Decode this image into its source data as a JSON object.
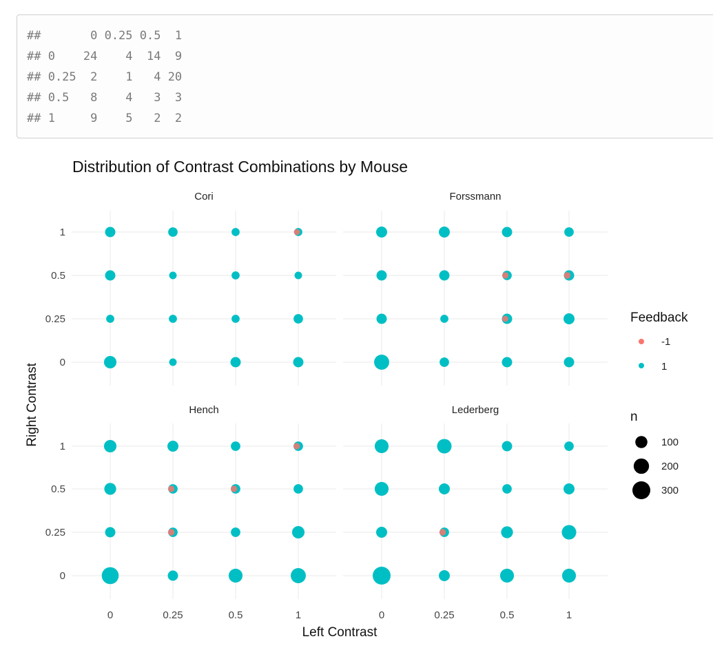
{
  "console": {
    "lines": [
      "##       0 0.25 0.5  1",
      "## 0    24    4  14  9",
      "## 0.25  2    1   4 20",
      "## 0.5   8    4   3  3",
      "## 1     9    5   2  2"
    ]
  },
  "colors": {
    "neg": "#F8766D",
    "pos": "#00BFC4",
    "grid": "#e8e8e8",
    "text": "#444444"
  },
  "chart_data": {
    "type": "scatter",
    "title": "Distribution of Contrast Combinations by Mouse",
    "xlabel": "Left Contrast",
    "ylabel": "Right Contrast",
    "x_categories": [
      "0",
      "0.25",
      "0.5",
      "1"
    ],
    "y_categories": [
      "0",
      "0.25",
      "0.5",
      "1"
    ],
    "grid": true,
    "legend_placement": "right",
    "legend_color": {
      "title": "Feedback",
      "entries": [
        "-1",
        "1"
      ]
    },
    "legend_size": {
      "title": "n",
      "entries": [
        "100",
        "200",
        "300"
      ],
      "values": [
        100,
        200,
        300
      ]
    },
    "panels": [
      {
        "name": "Cori",
        "points": [
          {
            "x": "0",
            "y": "1",
            "n": 60,
            "neg": 0
          },
          {
            "x": "0.25",
            "y": "1",
            "n": 45,
            "neg": 0
          },
          {
            "x": "0.5",
            "y": "1",
            "n": 25,
            "neg": 0
          },
          {
            "x": "1",
            "y": "1",
            "n": 25,
            "neg": 6
          },
          {
            "x": "0",
            "y": "0.5",
            "n": 60,
            "neg": 0
          },
          {
            "x": "0.25",
            "y": "0.5",
            "n": 18,
            "neg": 0
          },
          {
            "x": "0.5",
            "y": "0.5",
            "n": 25,
            "neg": 0
          },
          {
            "x": "1",
            "y": "0.5",
            "n": 18,
            "neg": 0
          },
          {
            "x": "0",
            "y": "0.25",
            "n": 25,
            "neg": 0
          },
          {
            "x": "0.25",
            "y": "0.25",
            "n": 25,
            "neg": 0
          },
          {
            "x": "0.5",
            "y": "0.25",
            "n": 25,
            "neg": 0
          },
          {
            "x": "1",
            "y": "0.25",
            "n": 45,
            "neg": 0
          },
          {
            "x": "0",
            "y": "0",
            "n": 110,
            "neg": 0
          },
          {
            "x": "0.25",
            "y": "0",
            "n": 18,
            "neg": 0
          },
          {
            "x": "0.5",
            "y": "0",
            "n": 60,
            "neg": 0
          },
          {
            "x": "1",
            "y": "0",
            "n": 60,
            "neg": 0
          }
        ]
      },
      {
        "name": "Forssmann",
        "points": [
          {
            "x": "0",
            "y": "1",
            "n": 75,
            "neg": 0
          },
          {
            "x": "0.25",
            "y": "1",
            "n": 75,
            "neg": 0
          },
          {
            "x": "0.5",
            "y": "1",
            "n": 60,
            "neg": 0
          },
          {
            "x": "1",
            "y": "1",
            "n": 45,
            "neg": 0
          },
          {
            "x": "0",
            "y": "0.5",
            "n": 60,
            "neg": 0
          },
          {
            "x": "0.25",
            "y": "0.5",
            "n": 60,
            "neg": 0
          },
          {
            "x": "0.5",
            "y": "0.5",
            "n": 45,
            "neg": 8
          },
          {
            "x": "1",
            "y": "0.5",
            "n": 60,
            "neg": 10
          },
          {
            "x": "0",
            "y": "0.25",
            "n": 60,
            "neg": 0
          },
          {
            "x": "0.25",
            "y": "0.25",
            "n": 25,
            "neg": 0
          },
          {
            "x": "0.5",
            "y": "0.25",
            "n": 60,
            "neg": 6
          },
          {
            "x": "1",
            "y": "0.25",
            "n": 75,
            "neg": 0
          },
          {
            "x": "0",
            "y": "0",
            "n": 190,
            "neg": 0
          },
          {
            "x": "0.25",
            "y": "0",
            "n": 45,
            "neg": 0
          },
          {
            "x": "0.5",
            "y": "0",
            "n": 60,
            "neg": 0
          },
          {
            "x": "1",
            "y": "0",
            "n": 60,
            "neg": 0
          }
        ]
      },
      {
        "name": "Hench",
        "points": [
          {
            "x": "0",
            "y": "1",
            "n": 110,
            "neg": 0
          },
          {
            "x": "0.25",
            "y": "1",
            "n": 75,
            "neg": 0
          },
          {
            "x": "0.5",
            "y": "1",
            "n": 45,
            "neg": 0
          },
          {
            "x": "1",
            "y": "1",
            "n": 45,
            "neg": 8
          },
          {
            "x": "0",
            "y": "0.5",
            "n": 95,
            "neg": 0
          },
          {
            "x": "0.25",
            "y": "0.5",
            "n": 45,
            "neg": 8
          },
          {
            "x": "0.5",
            "y": "0.5",
            "n": 45,
            "neg": 8
          },
          {
            "x": "1",
            "y": "0.5",
            "n": 45,
            "neg": 0
          },
          {
            "x": "0",
            "y": "0.25",
            "n": 60,
            "neg": 0
          },
          {
            "x": "0.25",
            "y": "0.25",
            "n": 45,
            "neg": 10
          },
          {
            "x": "0.5",
            "y": "0.25",
            "n": 45,
            "neg": 0
          },
          {
            "x": "1",
            "y": "0.25",
            "n": 110,
            "neg": 0
          },
          {
            "x": "0",
            "y": "0",
            "n": 260,
            "neg": 0
          },
          {
            "x": "0.25",
            "y": "0",
            "n": 60,
            "neg": 0
          },
          {
            "x": "0.5",
            "y": "0",
            "n": 150,
            "neg": 0
          },
          {
            "x": "1",
            "y": "0",
            "n": 190,
            "neg": 0
          }
        ]
      },
      {
        "name": "Lederberg",
        "points": [
          {
            "x": "0",
            "y": "1",
            "n": 150,
            "neg": 0
          },
          {
            "x": "0.25",
            "y": "1",
            "n": 170,
            "neg": 0
          },
          {
            "x": "0.5",
            "y": "1",
            "n": 60,
            "neg": 0
          },
          {
            "x": "1",
            "y": "1",
            "n": 45,
            "neg": 0
          },
          {
            "x": "0",
            "y": "0.5",
            "n": 150,
            "neg": 0
          },
          {
            "x": "0.25",
            "y": "0.5",
            "n": 75,
            "neg": 0
          },
          {
            "x": "0.5",
            "y": "0.5",
            "n": 45,
            "neg": 0
          },
          {
            "x": "1",
            "y": "0.5",
            "n": 75,
            "neg": 0
          },
          {
            "x": "0",
            "y": "0.25",
            "n": 75,
            "neg": 0
          },
          {
            "x": "0.25",
            "y": "0.25",
            "n": 45,
            "neg": 10
          },
          {
            "x": "0.5",
            "y": "0.25",
            "n": 95,
            "neg": 0
          },
          {
            "x": "1",
            "y": "0.25",
            "n": 170,
            "neg": 0
          },
          {
            "x": "0",
            "y": "0",
            "n": 300,
            "neg": 0
          },
          {
            "x": "0.25",
            "y": "0",
            "n": 75,
            "neg": 0
          },
          {
            "x": "0.5",
            "y": "0",
            "n": 150,
            "neg": 0
          },
          {
            "x": "1",
            "y": "0",
            "n": 150,
            "neg": 0
          }
        ]
      }
    ]
  }
}
